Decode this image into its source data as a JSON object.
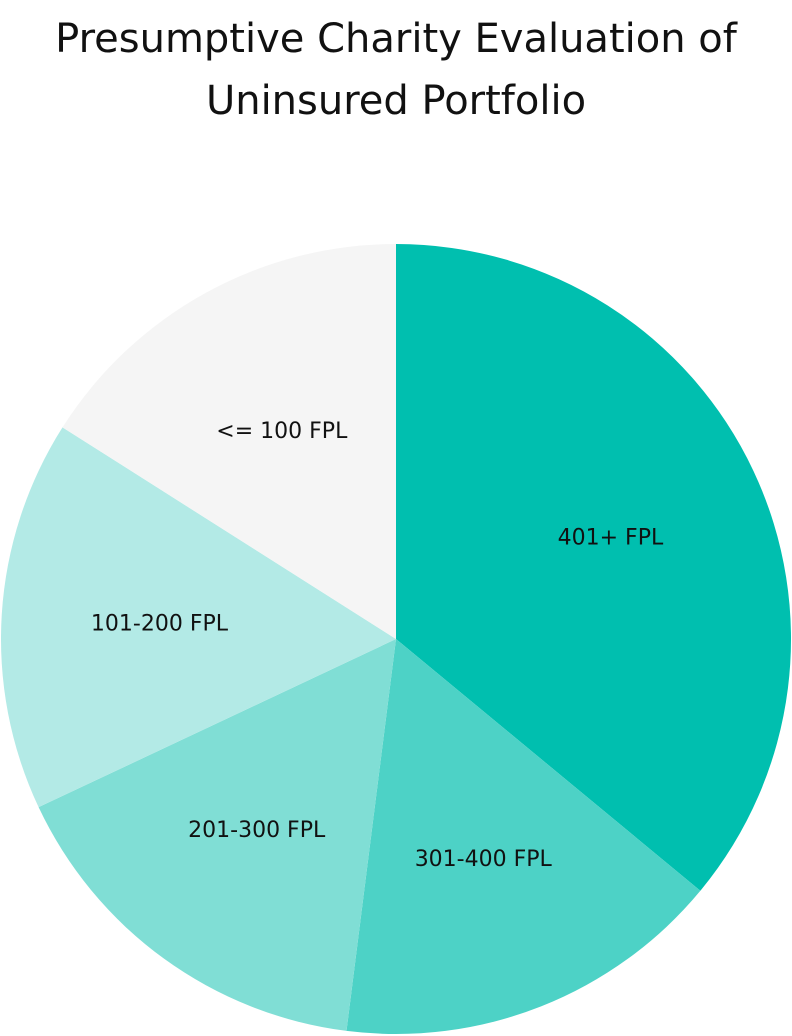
{
  "chart_data": {
    "type": "pie",
    "title_lines": [
      "Presumptive Charity Evaluation of",
      "Uninsured Portfolio"
    ],
    "start_angle": "12 o'clock",
    "direction": "clockwise",
    "categories": [
      "401+ FPL",
      "301-400 FPL",
      "201-300 FPL",
      "101-200 FPL",
      "<= 100 FPL"
    ],
    "values": [
      36,
      16,
      16,
      16,
      16
    ],
    "colors": [
      "#00BFAF",
      "#4DD2C6",
      "#80DED5",
      "#B3EAE6",
      "#F5F5F5"
    ],
    "legend": "none",
    "labels_inside": true
  }
}
